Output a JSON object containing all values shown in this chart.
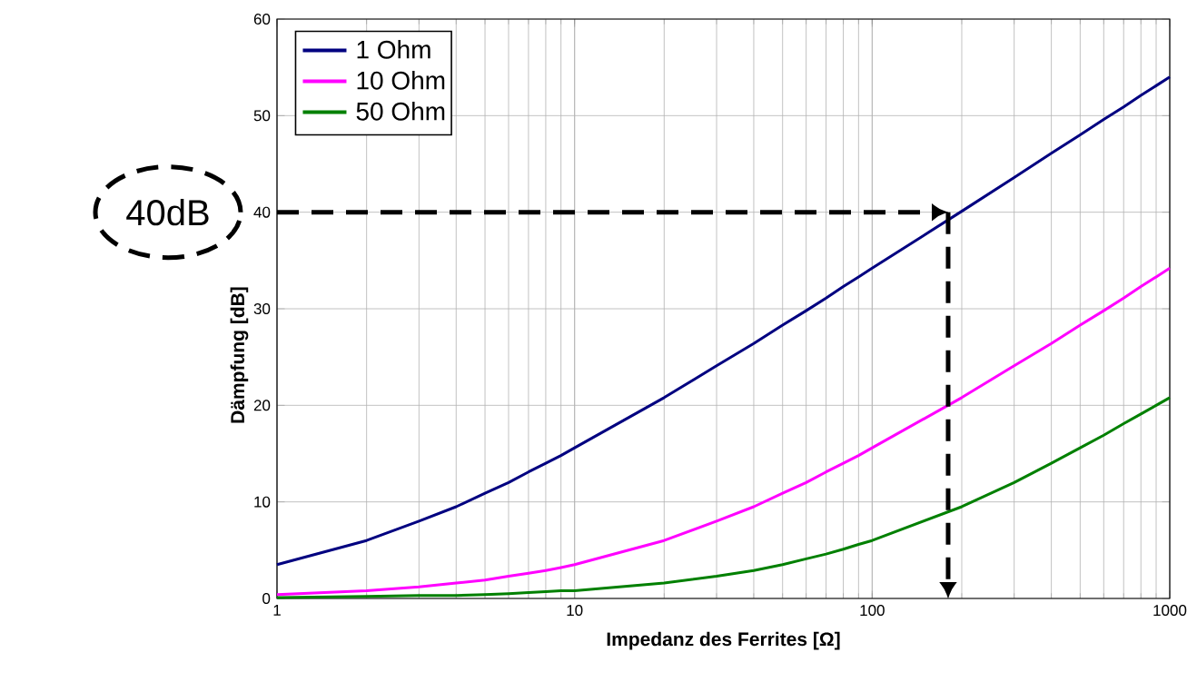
{
  "chart_data": {
    "type": "line",
    "xlabel": "Impedanz des Ferrites [Ω]",
    "ylabel": "Dämpfung [dB]",
    "x": [
      1,
      2,
      3,
      4,
      5,
      6,
      7,
      8,
      9,
      10,
      20,
      30,
      40,
      50,
      60,
      70,
      80,
      90,
      100,
      200,
      300,
      400,
      500,
      600,
      700,
      800,
      900,
      1000
    ],
    "series": [
      {
        "name": "1 Ohm",
        "color": "#000080",
        "values": [
          3.5,
          6.0,
          8.0,
          9.5,
          10.9,
          12.0,
          13.1,
          14.0,
          14.8,
          15.6,
          20.8,
          24.1,
          26.4,
          28.3,
          29.8,
          31.1,
          32.3,
          33.3,
          34.2,
          40.1,
          43.6,
          46.1,
          48.0,
          49.6,
          50.9,
          52.1,
          53.1,
          54.0
        ]
      },
      {
        "name": "10 Ohm",
        "color": "#ff00ff",
        "values": [
          0.4,
          0.8,
          1.2,
          1.6,
          1.9,
          2.3,
          2.6,
          2.9,
          3.2,
          3.5,
          6.0,
          8.0,
          9.5,
          10.9,
          12.0,
          13.1,
          14.0,
          14.8,
          15.6,
          20.8,
          24.1,
          26.4,
          28.3,
          29.8,
          31.1,
          32.3,
          33.3,
          34.2
        ]
      },
      {
        "name": "50 Ohm",
        "color": "#008000",
        "values": [
          0.1,
          0.2,
          0.3,
          0.3,
          0.4,
          0.5,
          0.6,
          0.7,
          0.8,
          0.8,
          1.6,
          2.3,
          2.9,
          3.5,
          4.1,
          4.6,
          5.1,
          5.6,
          6.0,
          9.5,
          12.0,
          14.0,
          15.6,
          16.9,
          18.1,
          19.1,
          20.0,
          20.8
        ]
      }
    ],
    "xlim": [
      1,
      1000
    ],
    "ylim": [
      0,
      60
    ],
    "xticks": [
      1,
      10,
      100,
      1000
    ],
    "yticks": [
      0,
      10,
      20,
      30,
      40,
      50,
      60
    ],
    "log": "x",
    "grid": true,
    "legend": "top left",
    "ref_lines": [
      {
        "axis": "y",
        "value": 40,
        "label": "40dB",
        "line_style": "dashed",
        "color": "#000000"
      },
      {
        "axis": "x",
        "value": 180,
        "line_style": "dashed",
        "color": "#000000"
      }
    ]
  }
}
